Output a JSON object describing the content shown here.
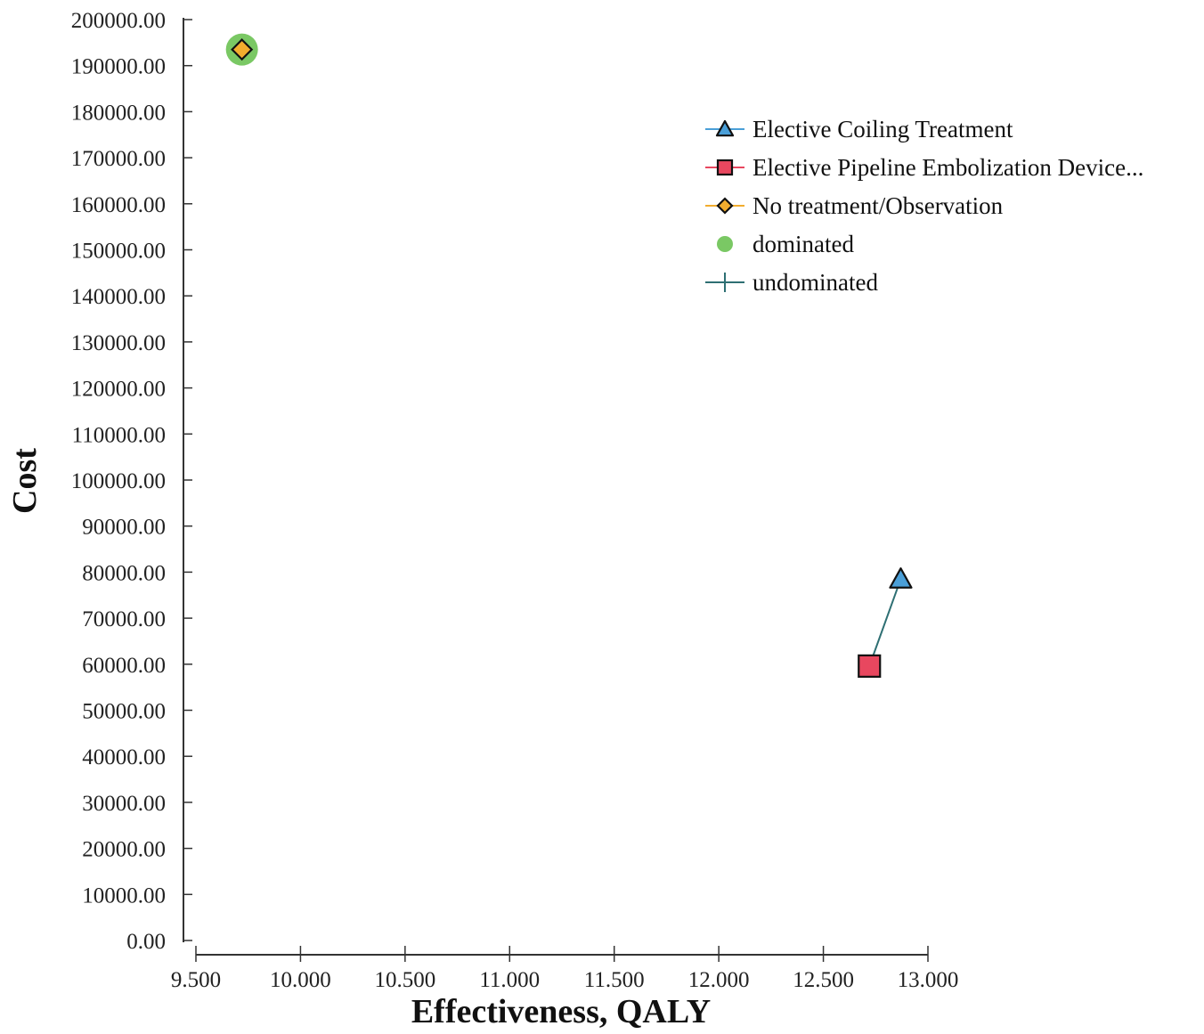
{
  "chart_data": {
    "type": "scatter",
    "xlabel": "Effectiveness, QALY",
    "ylabel": "Cost",
    "xlim": [
      9.5,
      13.0
    ],
    "ylim": [
      0,
      200000
    ],
    "xticks": [
      9.5,
      10.0,
      10.5,
      11.0,
      11.5,
      12.0,
      12.5,
      13.0
    ],
    "xtick_labels": [
      "9.500",
      "10.000",
      "10.500",
      "11.000",
      "11.500",
      "12.000",
      "12.500",
      "13.000"
    ],
    "yticks": [
      0,
      10000,
      20000,
      30000,
      40000,
      50000,
      60000,
      70000,
      80000,
      90000,
      100000,
      110000,
      120000,
      130000,
      140000,
      150000,
      160000,
      170000,
      180000,
      190000,
      200000
    ],
    "ytick_labels": [
      "0.00",
      "10000.00",
      "20000.00",
      "30000.00",
      "40000.00",
      "50000.00",
      "60000.00",
      "70000.00",
      "80000.00",
      "90000.00",
      "100000.00",
      "110000.00",
      "120000.00",
      "130000.00",
      "140000.00",
      "150000.00",
      "160000.00",
      "170000.00",
      "180000.00",
      "190000.00",
      "200000.00"
    ],
    "grid": false,
    "legend_position": "top-right",
    "series": [
      {
        "name": "Elective Coiling Treatment",
        "marker": "triangle",
        "color": "#4a9fd8",
        "x": 12.87,
        "y": 78500
      },
      {
        "name": "Elective Pipeline Embolization Device...",
        "marker": "square",
        "color": "#e8475f",
        "x": 12.72,
        "y": 59600
      },
      {
        "name": "No treatment/Observation",
        "marker": "diamond",
        "color": "#f2ad2e",
        "x": 9.72,
        "y": 193500
      }
    ],
    "dominated": {
      "name": "dominated",
      "color": "#7ac864",
      "points": [
        {
          "x": 9.72,
          "y": 193500
        }
      ]
    },
    "undominated": {
      "name": "undominated",
      "color": "#2e6f73",
      "line": [
        {
          "x": 12.72,
          "y": 59600
        },
        {
          "x": 12.87,
          "y": 78500
        }
      ]
    }
  }
}
